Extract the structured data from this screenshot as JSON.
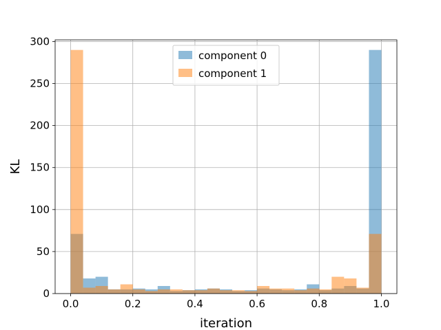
{
  "chart_data": {
    "type": "bar",
    "subtype": "histogram",
    "xlabel": "iteration",
    "ylabel": "KL",
    "xlim": [
      -0.05,
      1.05
    ],
    "ylim": [
      0,
      302
    ],
    "grid": true,
    "legend_position": "top-center",
    "bin_width": 0.04,
    "bin_edges_start": 0.0,
    "x_ticks": [
      0.0,
      0.2,
      0.4,
      0.6,
      0.8,
      1.0
    ],
    "x_tick_labels": [
      "0.0",
      "0.2",
      "0.4",
      "0.6",
      "0.8",
      "1.0"
    ],
    "y_ticks": [
      0,
      50,
      100,
      150,
      200,
      250,
      300
    ],
    "y_tick_labels": [
      "0",
      "50",
      "100",
      "150",
      "200",
      "250",
      "300"
    ],
    "series": [
      {
        "name": "component 0",
        "color": "#1f77b4",
        "values": [
          71,
          18,
          20,
          5,
          5,
          6,
          5,
          9,
          3,
          4,
          5,
          6,
          5,
          3,
          4,
          6,
          5,
          4,
          5,
          11,
          4,
          6,
          9,
          6,
          290
        ]
      },
      {
        "name": "component 1",
        "color": "#ff7f0e",
        "values": [
          290,
          7,
          9,
          5,
          11,
          5,
          3,
          5,
          5,
          4,
          4,
          6,
          4,
          4,
          3,
          9,
          6,
          6,
          4,
          6,
          5,
          20,
          18,
          7,
          71
        ]
      }
    ],
    "bar_alpha": 0.5
  }
}
